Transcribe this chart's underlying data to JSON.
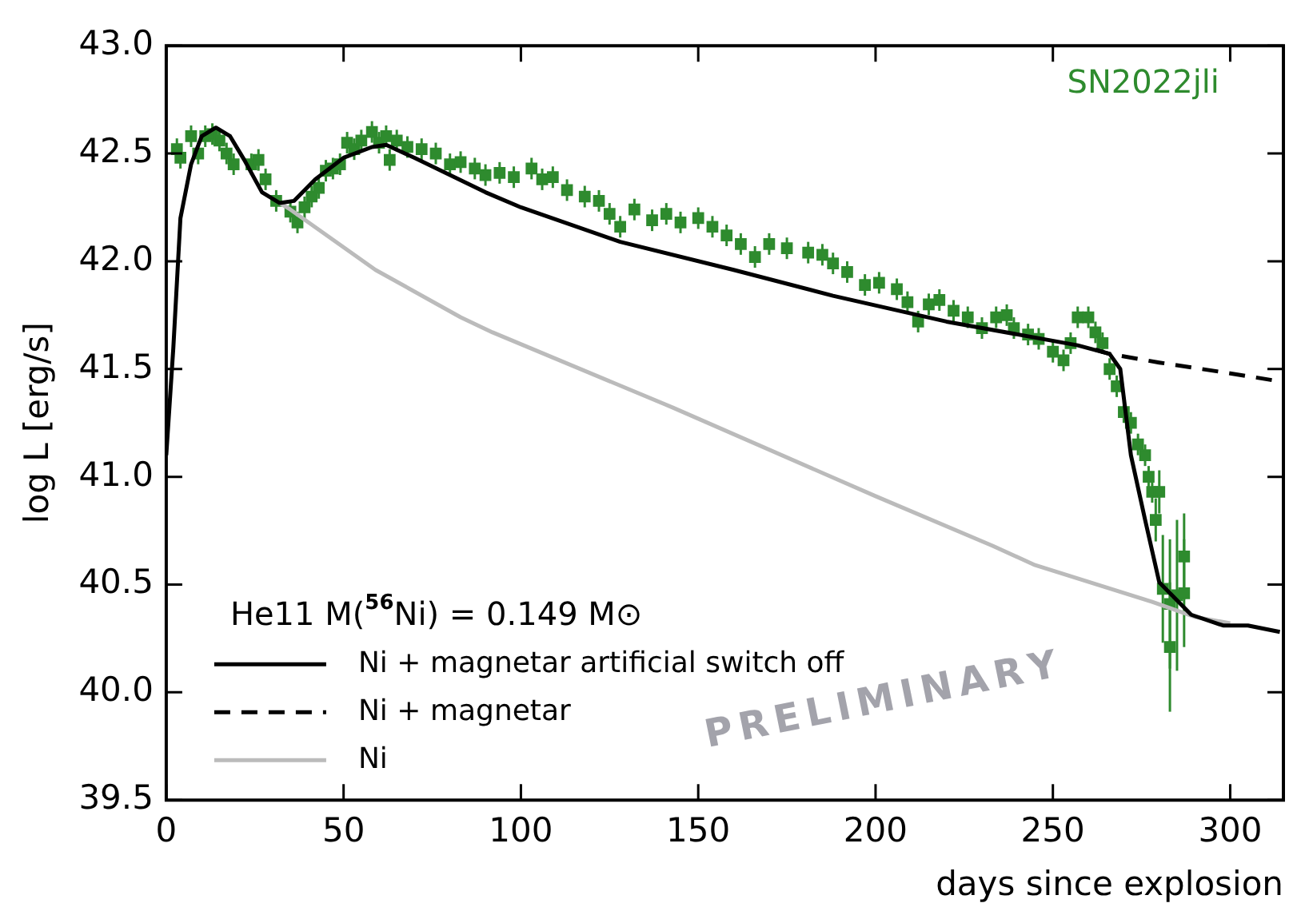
{
  "chart_data": {
    "type": "line",
    "xlabel": "days since explosion",
    "ylabel": "log L [erg/s]",
    "legend_title": "He11 M($^{56}$Ni) = 0.149 M⊙",
    "legend": "bottom left",
    "grid": false,
    "xlim": [
      0,
      315
    ],
    "xticks": [
      0,
      50,
      100,
      150,
      200,
      250,
      300
    ],
    "ylim": [
      39.5,
      43.0
    ],
    "yticks": [
      39.5,
      {
        "value": 40,
        "label": "40.0"
      },
      40.5,
      {
        "value": 41,
        "label": "41.0"
      },
      41.5,
      {
        "value": 42,
        "label": "42.0"
      },
      42.5,
      {
        "value": 43,
        "label": "43.0"
      }
    ],
    "annotations": [
      "PRELIMINARY"
    ],
    "series": [
      {
        "name": "SN2022jli",
        "type": "scatter",
        "marker": "square",
        "color": "#2e8b2e",
        "x": [
          3,
          4,
          7,
          9,
          11,
          13,
          15,
          17,
          19,
          24,
          26,
          28,
          31,
          35,
          37,
          39,
          41,
          43,
          45,
          47,
          49,
          51,
          53,
          55,
          58,
          60,
          62,
          63,
          65,
          68,
          72,
          76,
          80,
          83,
          87,
          90,
          94,
          98,
          103,
          106,
          109,
          113,
          118,
          122,
          125,
          128,
          132,
          137,
          141,
          145,
          150,
          154,
          158,
          162,
          166,
          170,
          175,
          181,
          185,
          188,
          192,
          197,
          201,
          206,
          209,
          212,
          215,
          218,
          222,
          226,
          230,
          234,
          237,
          239,
          243,
          246,
          250,
          253,
          255,
          257,
          260,
          262,
          264,
          266,
          268,
          270,
          272,
          274,
          276,
          277,
          278,
          279,
          280,
          281,
          283,
          283,
          285,
          287,
          287
        ],
        "values": [
          42.52,
          42.48,
          42.58,
          42.5,
          42.58,
          42.59,
          42.56,
          42.5,
          42.45,
          42.45,
          42.47,
          42.38,
          42.28,
          42.23,
          42.18,
          42.25,
          42.3,
          42.34,
          42.42,
          42.43,
          42.45,
          42.55,
          42.52,
          42.56,
          42.6,
          42.55,
          42.58,
          42.47,
          42.56,
          42.53,
          42.52,
          42.5,
          42.45,
          42.46,
          42.43,
          42.4,
          42.41,
          42.39,
          42.43,
          42.38,
          42.39,
          42.33,
          42.3,
          42.28,
          42.22,
          42.16,
          42.24,
          42.19,
          42.22,
          42.18,
          42.2,
          42.16,
          42.12,
          42.08,
          42.02,
          42.08,
          42.06,
          42.04,
          42.03,
          41.99,
          41.95,
          41.89,
          41.9,
          41.87,
          41.81,
          41.72,
          41.8,
          41.82,
          41.77,
          41.74,
          41.69,
          41.74,
          41.75,
          41.69,
          41.66,
          41.64,
          41.58,
          41.54,
          41.62,
          41.74,
          41.74,
          41.67,
          41.62,
          41.5,
          41.42,
          41.3,
          41.25,
          41.15,
          41.1,
          41.0,
          40.93,
          40.8,
          40.93,
          40.48,
          40.41,
          40.21,
          40.45,
          40.63,
          40.46
        ],
        "errors": [
          0.05,
          0.05,
          0.05,
          0.05,
          0.05,
          0.05,
          0.05,
          0.05,
          0.05,
          0.05,
          0.05,
          0.05,
          0.05,
          0.05,
          0.05,
          0.05,
          0.05,
          0.05,
          0.05,
          0.05,
          0.05,
          0.05,
          0.05,
          0.05,
          0.05,
          0.05,
          0.05,
          0.05,
          0.05,
          0.05,
          0.05,
          0.05,
          0.05,
          0.05,
          0.05,
          0.05,
          0.05,
          0.05,
          0.05,
          0.05,
          0.05,
          0.05,
          0.05,
          0.05,
          0.05,
          0.05,
          0.05,
          0.05,
          0.05,
          0.05,
          0.05,
          0.05,
          0.05,
          0.05,
          0.05,
          0.05,
          0.05,
          0.05,
          0.05,
          0.05,
          0.05,
          0.05,
          0.05,
          0.05,
          0.05,
          0.05,
          0.05,
          0.05,
          0.05,
          0.05,
          0.05,
          0.05,
          0.05,
          0.05,
          0.05,
          0.05,
          0.05,
          0.05,
          0.05,
          0.05,
          0.05,
          0.05,
          0.05,
          0.05,
          0.05,
          0.05,
          0.05,
          0.05,
          0.05,
          0.05,
          0.05,
          0.1,
          0.1,
          0.25,
          0.3,
          0.3,
          0.35,
          0.2,
          0.25
        ]
      },
      {
        "name": "Ni + magnetar artificial switch off",
        "type": "line",
        "line_style": "solid",
        "marker": "none",
        "color": "#000000",
        "x": [
          0,
          2,
          4,
          7,
          10,
          14,
          18,
          22,
          27,
          32,
          36,
          42,
          50,
          58,
          62,
          70,
          80,
          90,
          100,
          128,
          160,
          188,
          220,
          257,
          266,
          269,
          272,
          276,
          280,
          289,
          298,
          305,
          314
        ],
        "values": [
          41.1,
          41.6,
          42.2,
          42.45,
          42.58,
          42.62,
          42.58,
          42.47,
          42.32,
          42.27,
          42.28,
          42.38,
          42.48,
          42.53,
          42.54,
          42.48,
          42.4,
          42.32,
          42.25,
          42.09,
          41.96,
          41.84,
          41.72,
          41.61,
          41.57,
          41.5,
          41.1,
          40.8,
          40.51,
          40.36,
          40.31,
          40.31,
          40.28
        ]
      },
      {
        "name": "Ni + magnetar",
        "type": "line",
        "line_style": "dashed",
        "marker": "none",
        "color": "#000000",
        "x": [
          262,
          266,
          280,
          300,
          315
        ],
        "values": [
          41.59,
          41.57,
          41.53,
          41.48,
          41.44
        ]
      },
      {
        "name": "Ni",
        "type": "line",
        "line_style": "solid",
        "marker": "none",
        "color": "#bbbbbb",
        "x": [
          32,
          35,
          59,
          83,
          92,
          143,
          200,
          233,
          245,
          278,
          290,
          300
        ],
        "values": [
          42.27,
          42.24,
          41.96,
          41.74,
          41.67,
          41.32,
          40.91,
          40.68,
          40.59,
          40.42,
          40.35,
          40.32
        ]
      }
    ]
  }
}
